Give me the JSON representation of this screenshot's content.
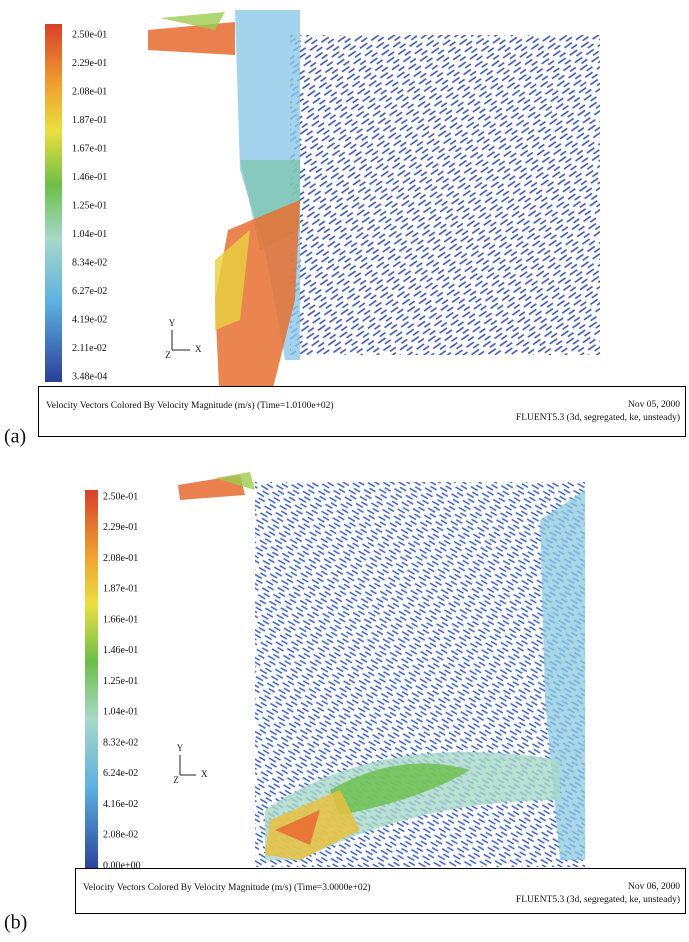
{
  "panels": [
    {
      "tag": "(a)",
      "colorbar_labels": [
        "2.50e-01",
        "2.29e-01",
        "2.08e-01",
        "1.87e-01",
        "1.67e-01",
        "1.46e-01",
        "1.25e-01",
        "1.04e-01",
        "8.34e-02",
        "6.27e-02",
        "4.19e-02",
        "2.11e-02",
        "3.48e-04"
      ],
      "axes": {
        "y": "Y",
        "z": "Z",
        "x": "X"
      },
      "caption": "Velocity Vectors Colored By Velocity Magnitude (m/s)  (Time=1.0100e+02)",
      "date": "Nov 05, 2000",
      "solver": "FLUENT5.3 (3d, segregated, ke, unsteady)"
    },
    {
      "tag": "(b)",
      "colorbar_labels": [
        "2.50e-01",
        "2.29e-01",
        "2.08e-01",
        "1.87e-01",
        "1.66e-01",
        "1.46e-01",
        "1.25e-01",
        "1.04e-01",
        "8.32e-02",
        "6.24e-02",
        "4.16e-02",
        "2.08e-02",
        "0.00e+00"
      ],
      "axes": {
        "y": "Y",
        "z": "Z",
        "x": "X"
      },
      "caption": "Velocity Vectors Colored By Velocity Magnitude (m/s)  (Time=3.0000e+02)",
      "date": "Nov 06, 2000",
      "solver": "FLUENT5.3 (3d, segregated, ke, unsteady)"
    }
  ]
}
